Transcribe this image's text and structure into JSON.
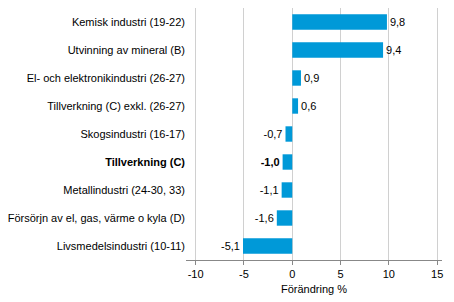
{
  "chart_data": {
    "type": "bar",
    "orientation": "horizontal",
    "categories": [
      "Kemisk industri (19-22)",
      "Utvinning av mineral (B)",
      "El- och elektronikindustri (26-27)",
      "Tillverkning (C) exkl. (26-27)",
      "Skogsindustri (16-17)",
      "Tillverkning (C)",
      "Metallindustri (24-30, 33)",
      "Försörjn av el, gas, värme o kyla (D)",
      "Livsmedelsindustri (10-11)"
    ],
    "values": [
      9.8,
      9.4,
      0.9,
      0.6,
      -0.7,
      -1.0,
      -1.1,
      -1.6,
      -5.1
    ],
    "value_labels": [
      "9,8",
      "9,4",
      "0,9",
      "0,6",
      "-0,7",
      "-1,0",
      "-1,1",
      "-1,6",
      "-5,1"
    ],
    "data_labels": true,
    "color": "#0099d8",
    "x_label": "Förändring %",
    "xlim": [
      -11,
      15.5
    ],
    "xticks": [
      -10,
      -5,
      0,
      5,
      10,
      15
    ],
    "grid": true
  }
}
